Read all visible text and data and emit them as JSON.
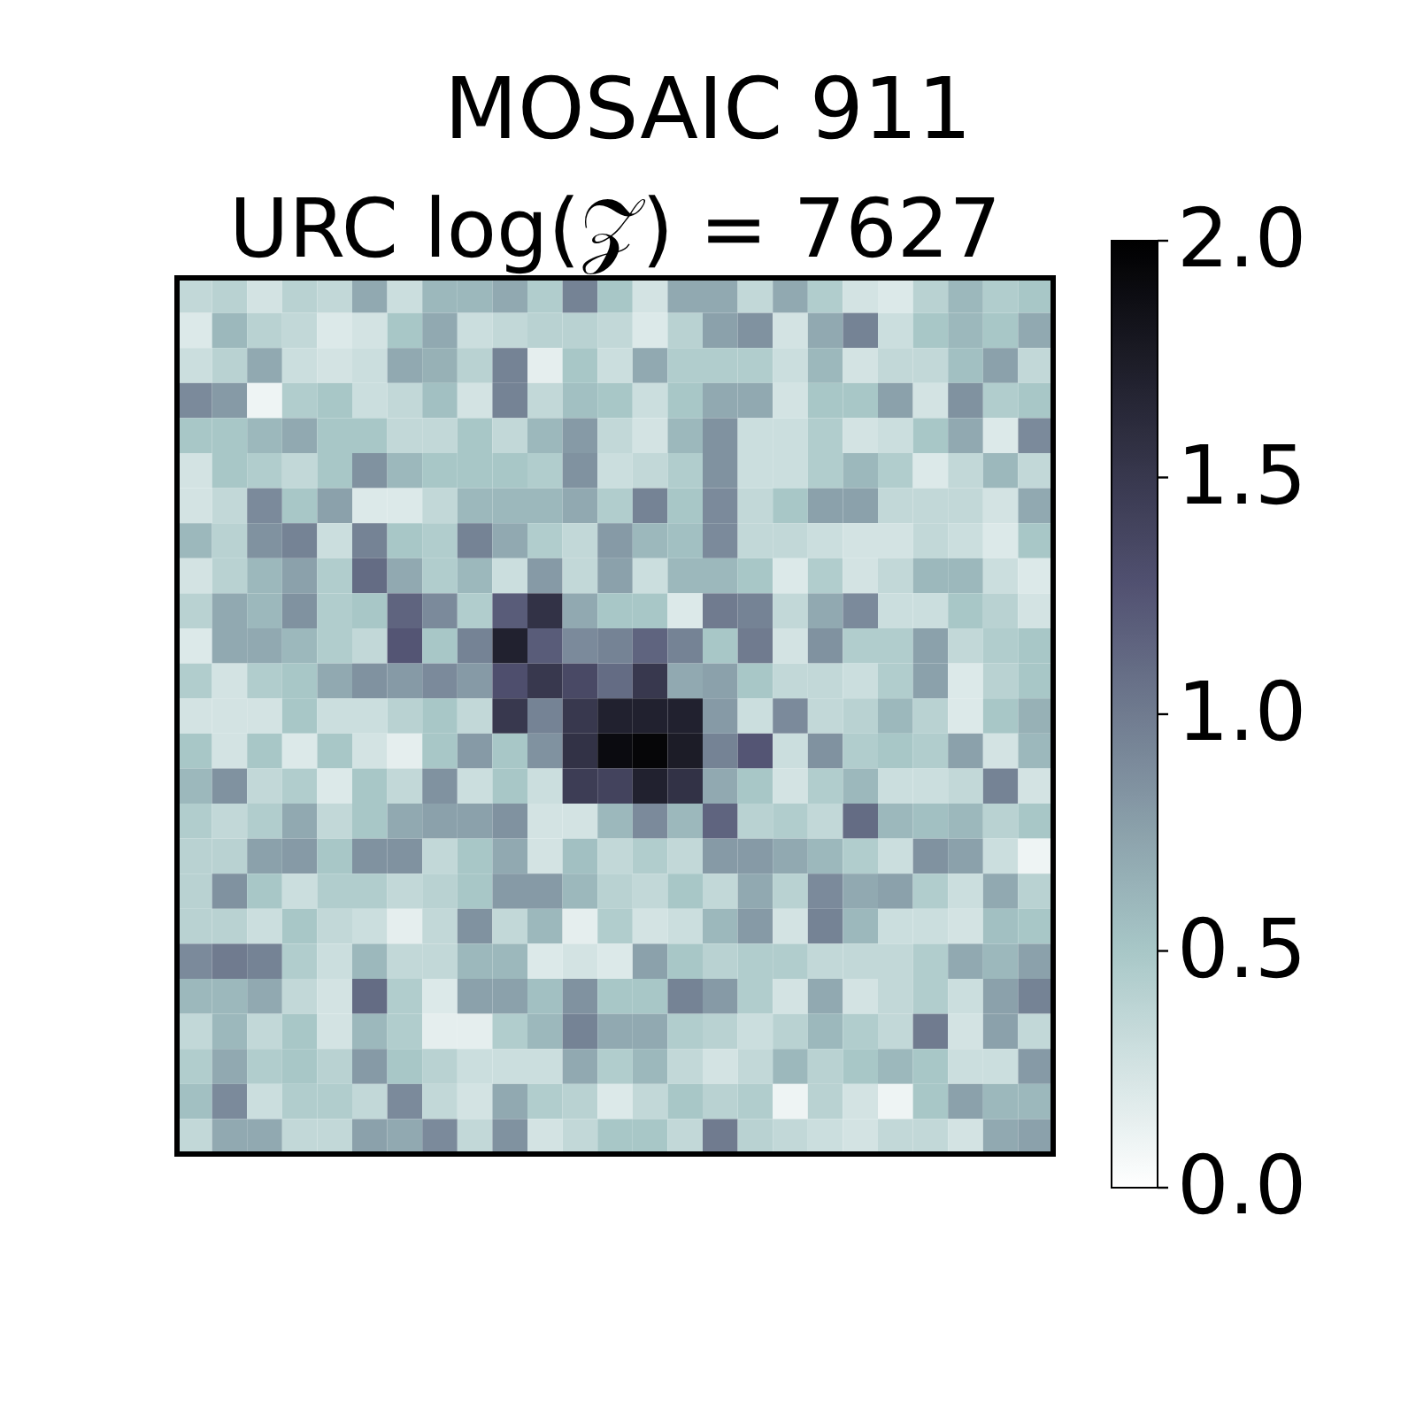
{
  "chart_data": {
    "type": "heatmap",
    "title": "MOSAIC 911",
    "subtitle": "URC log(𝒵) = 7627",
    "categories": [
      null,
      null,
      null,
      null,
      null,
      null,
      null,
      null,
      null,
      null,
      null,
      null,
      null,
      null,
      null,
      null,
      null,
      null,
      null,
      null,
      null,
      null,
      null,
      null,
      null
    ],
    "y_categories": [
      null,
      null,
      null,
      null,
      null,
      null,
      null,
      null,
      null,
      null,
      null,
      null,
      null,
      null,
      null,
      null,
      null,
      null,
      null,
      null,
      null,
      null,
      null,
      null,
      null
    ],
    "clim": [
      0,
      2
    ],
    "cticks": [
      {
        "value": 0,
        "label": "0.0"
      },
      {
        "value": 0.5,
        "label": "0.5"
      },
      {
        "value": 1,
        "label": "1.0"
      },
      {
        "value": 1.5,
        "label": "1.5"
      },
      {
        "value": 2,
        "label": "2.0"
      }
    ],
    "cells": [
      [
        0.35,
        0.4,
        0.25,
        0.4,
        0.35,
        0.7,
        0.3,
        0.6,
        0.6,
        0.7,
        0.45,
        0.95,
        0.5,
        0.25,
        0.7,
        0.7,
        0.35,
        0.7,
        0.45,
        0.25,
        0.2,
        0.4,
        0.6,
        0.45,
        0.5
      ],
      [
        0.2,
        0.6,
        0.4,
        0.35,
        0.2,
        0.25,
        0.5,
        0.7,
        0.3,
        0.35,
        0.4,
        0.4,
        0.35,
        0.2,
        0.4,
        0.75,
        0.85,
        0.25,
        0.7,
        0.95,
        0.3,
        0.5,
        0.6,
        0.5,
        0.7
      ],
      [
        0.3,
        0.4,
        0.7,
        0.3,
        0.25,
        0.3,
        0.7,
        0.65,
        0.4,
        0.95,
        0.15,
        0.5,
        0.3,
        0.7,
        0.45,
        0.45,
        0.45,
        0.3,
        0.6,
        0.25,
        0.35,
        0.35,
        0.55,
        0.75,
        0.35
      ],
      [
        0.9,
        0.8,
        0.1,
        0.45,
        0.5,
        0.3,
        0.35,
        0.55,
        0.25,
        0.95,
        0.35,
        0.55,
        0.5,
        0.3,
        0.5,
        0.7,
        0.7,
        0.25,
        0.5,
        0.5,
        0.75,
        0.25,
        0.85,
        0.45,
        0.5
      ],
      [
        0.5,
        0.5,
        0.6,
        0.7,
        0.5,
        0.5,
        0.35,
        0.35,
        0.5,
        0.35,
        0.6,
        0.8,
        0.35,
        0.25,
        0.6,
        0.85,
        0.3,
        0.3,
        0.45,
        0.25,
        0.3,
        0.5,
        0.7,
        0.2,
        0.9
      ],
      [
        0.25,
        0.5,
        0.45,
        0.35,
        0.5,
        0.85,
        0.6,
        0.5,
        0.5,
        0.5,
        0.45,
        0.85,
        0.3,
        0.35,
        0.45,
        0.85,
        0.3,
        0.3,
        0.45,
        0.6,
        0.45,
        0.2,
        0.35,
        0.6,
        0.35
      ],
      [
        0.25,
        0.35,
        0.9,
        0.5,
        0.75,
        0.2,
        0.2,
        0.35,
        0.6,
        0.6,
        0.6,
        0.7,
        0.45,
        0.95,
        0.5,
        0.9,
        0.35,
        0.5,
        0.75,
        0.75,
        0.35,
        0.35,
        0.35,
        0.25,
        0.7
      ],
      [
        0.6,
        0.4,
        0.85,
        0.95,
        0.3,
        0.95,
        0.5,
        0.45,
        0.95,
        0.7,
        0.45,
        0.35,
        0.8,
        0.6,
        0.55,
        0.9,
        0.35,
        0.35,
        0.3,
        0.25,
        0.25,
        0.35,
        0.3,
        0.2,
        0.5
      ],
      [
        0.25,
        0.4,
        0.6,
        0.75,
        0.45,
        1.1,
        0.7,
        0.45,
        0.6,
        0.3,
        0.8,
        0.35,
        0.75,
        0.3,
        0.6,
        0.6,
        0.5,
        0.2,
        0.45,
        0.25,
        0.35,
        0.6,
        0.6,
        0.3,
        0.2
      ],
      [
        0.4,
        0.7,
        0.6,
        0.85,
        0.45,
        0.5,
        1.15,
        0.9,
        0.45,
        1.2,
        1.55,
        0.7,
        0.5,
        0.5,
        0.2,
        1.0,
        0.95,
        0.35,
        0.7,
        0.9,
        0.3,
        0.3,
        0.5,
        0.4,
        0.25
      ],
      [
        0.2,
        0.7,
        0.7,
        0.6,
        0.45,
        0.35,
        1.25,
        0.5,
        0.95,
        1.7,
        1.2,
        0.9,
        0.95,
        1.15,
        0.95,
        0.5,
        1.0,
        0.25,
        0.85,
        0.45,
        0.45,
        0.75,
        0.35,
        0.45,
        0.5
      ],
      [
        0.45,
        0.25,
        0.45,
        0.5,
        0.7,
        0.85,
        0.8,
        0.9,
        0.8,
        1.3,
        1.5,
        1.35,
        1.1,
        1.5,
        0.7,
        0.75,
        0.5,
        0.35,
        0.35,
        0.3,
        0.45,
        0.75,
        0.2,
        0.4,
        0.5
      ],
      [
        0.25,
        0.25,
        0.25,
        0.5,
        0.3,
        0.3,
        0.4,
        0.5,
        0.35,
        1.5,
        0.95,
        1.5,
        1.7,
        1.7,
        1.7,
        0.8,
        0.3,
        0.9,
        0.35,
        0.4,
        0.6,
        0.4,
        0.2,
        0.5,
        0.65
      ],
      [
        0.5,
        0.25,
        0.5,
        0.2,
        0.5,
        0.25,
        0.15,
        0.5,
        0.8,
        0.5,
        0.85,
        1.55,
        1.9,
        1.95,
        1.75,
        0.95,
        1.25,
        0.3,
        0.85,
        0.45,
        0.5,
        0.45,
        0.75,
        0.25,
        0.6
      ],
      [
        0.6,
        0.85,
        0.35,
        0.45,
        0.2,
        0.5,
        0.35,
        0.85,
        0.3,
        0.5,
        0.3,
        1.45,
        1.4,
        1.7,
        1.55,
        0.7,
        0.5,
        0.25,
        0.45,
        0.6,
        0.3,
        0.3,
        0.35,
        0.95,
        0.25
      ],
      [
        0.45,
        0.35,
        0.45,
        0.7,
        0.35,
        0.5,
        0.7,
        0.75,
        0.75,
        0.85,
        0.25,
        0.25,
        0.6,
        0.9,
        0.6,
        1.15,
        0.4,
        0.45,
        0.35,
        1.1,
        0.6,
        0.55,
        0.6,
        0.4,
        0.5
      ],
      [
        0.4,
        0.4,
        0.75,
        0.8,
        0.5,
        0.85,
        0.85,
        0.35,
        0.5,
        0.7,
        0.25,
        0.55,
        0.35,
        0.45,
        0.35,
        0.8,
        0.8,
        0.7,
        0.6,
        0.45,
        0.3,
        0.85,
        0.75,
        0.3,
        0.1
      ],
      [
        0.4,
        0.85,
        0.5,
        0.3,
        0.45,
        0.45,
        0.35,
        0.4,
        0.5,
        0.8,
        0.8,
        0.6,
        0.4,
        0.35,
        0.5,
        0.35,
        0.7,
        0.4,
        0.9,
        0.7,
        0.75,
        0.45,
        0.3,
        0.7,
        0.4
      ],
      [
        0.4,
        0.4,
        0.3,
        0.5,
        0.35,
        0.3,
        0.15,
        0.35,
        0.85,
        0.35,
        0.6,
        0.15,
        0.45,
        0.25,
        0.3,
        0.6,
        0.8,
        0.25,
        0.95,
        0.6,
        0.3,
        0.3,
        0.25,
        0.55,
        0.5
      ],
      [
        0.9,
        1.0,
        0.95,
        0.45,
        0.3,
        0.6,
        0.35,
        0.35,
        0.6,
        0.6,
        0.2,
        0.25,
        0.2,
        0.75,
        0.5,
        0.4,
        0.45,
        0.45,
        0.35,
        0.35,
        0.35,
        0.45,
        0.7,
        0.6,
        0.75
      ],
      [
        0.6,
        0.6,
        0.7,
        0.35,
        0.25,
        1.1,
        0.45,
        0.2,
        0.75,
        0.75,
        0.55,
        0.85,
        0.5,
        0.5,
        0.95,
        0.8,
        0.45,
        0.25,
        0.7,
        0.25,
        0.35,
        0.45,
        0.3,
        0.75,
        0.95
      ],
      [
        0.35,
        0.6,
        0.35,
        0.5,
        0.25,
        0.6,
        0.45,
        0.15,
        0.15,
        0.45,
        0.6,
        0.95,
        0.7,
        0.7,
        0.45,
        0.4,
        0.3,
        0.4,
        0.6,
        0.45,
        0.35,
        1.0,
        0.25,
        0.75,
        0.35
      ],
      [
        0.45,
        0.7,
        0.45,
        0.5,
        0.4,
        0.8,
        0.5,
        0.4,
        0.3,
        0.3,
        0.3,
        0.7,
        0.45,
        0.6,
        0.35,
        0.25,
        0.35,
        0.6,
        0.4,
        0.5,
        0.6,
        0.5,
        0.3,
        0.3,
        0.8
      ],
      [
        0.55,
        0.9,
        0.3,
        0.45,
        0.45,
        0.35,
        0.9,
        0.35,
        0.25,
        0.7,
        0.45,
        0.4,
        0.2,
        0.35,
        0.5,
        0.4,
        0.45,
        0.1,
        0.4,
        0.25,
        0.1,
        0.5,
        0.75,
        0.6,
        0.6
      ],
      [
        0.35,
        0.7,
        0.7,
        0.35,
        0.35,
        0.75,
        0.7,
        0.9,
        0.35,
        0.85,
        0.25,
        0.35,
        0.5,
        0.5,
        0.35,
        1.0,
        0.4,
        0.35,
        0.3,
        0.25,
        0.35,
        0.35,
        0.25,
        0.7,
        0.75
      ]
    ]
  }
}
